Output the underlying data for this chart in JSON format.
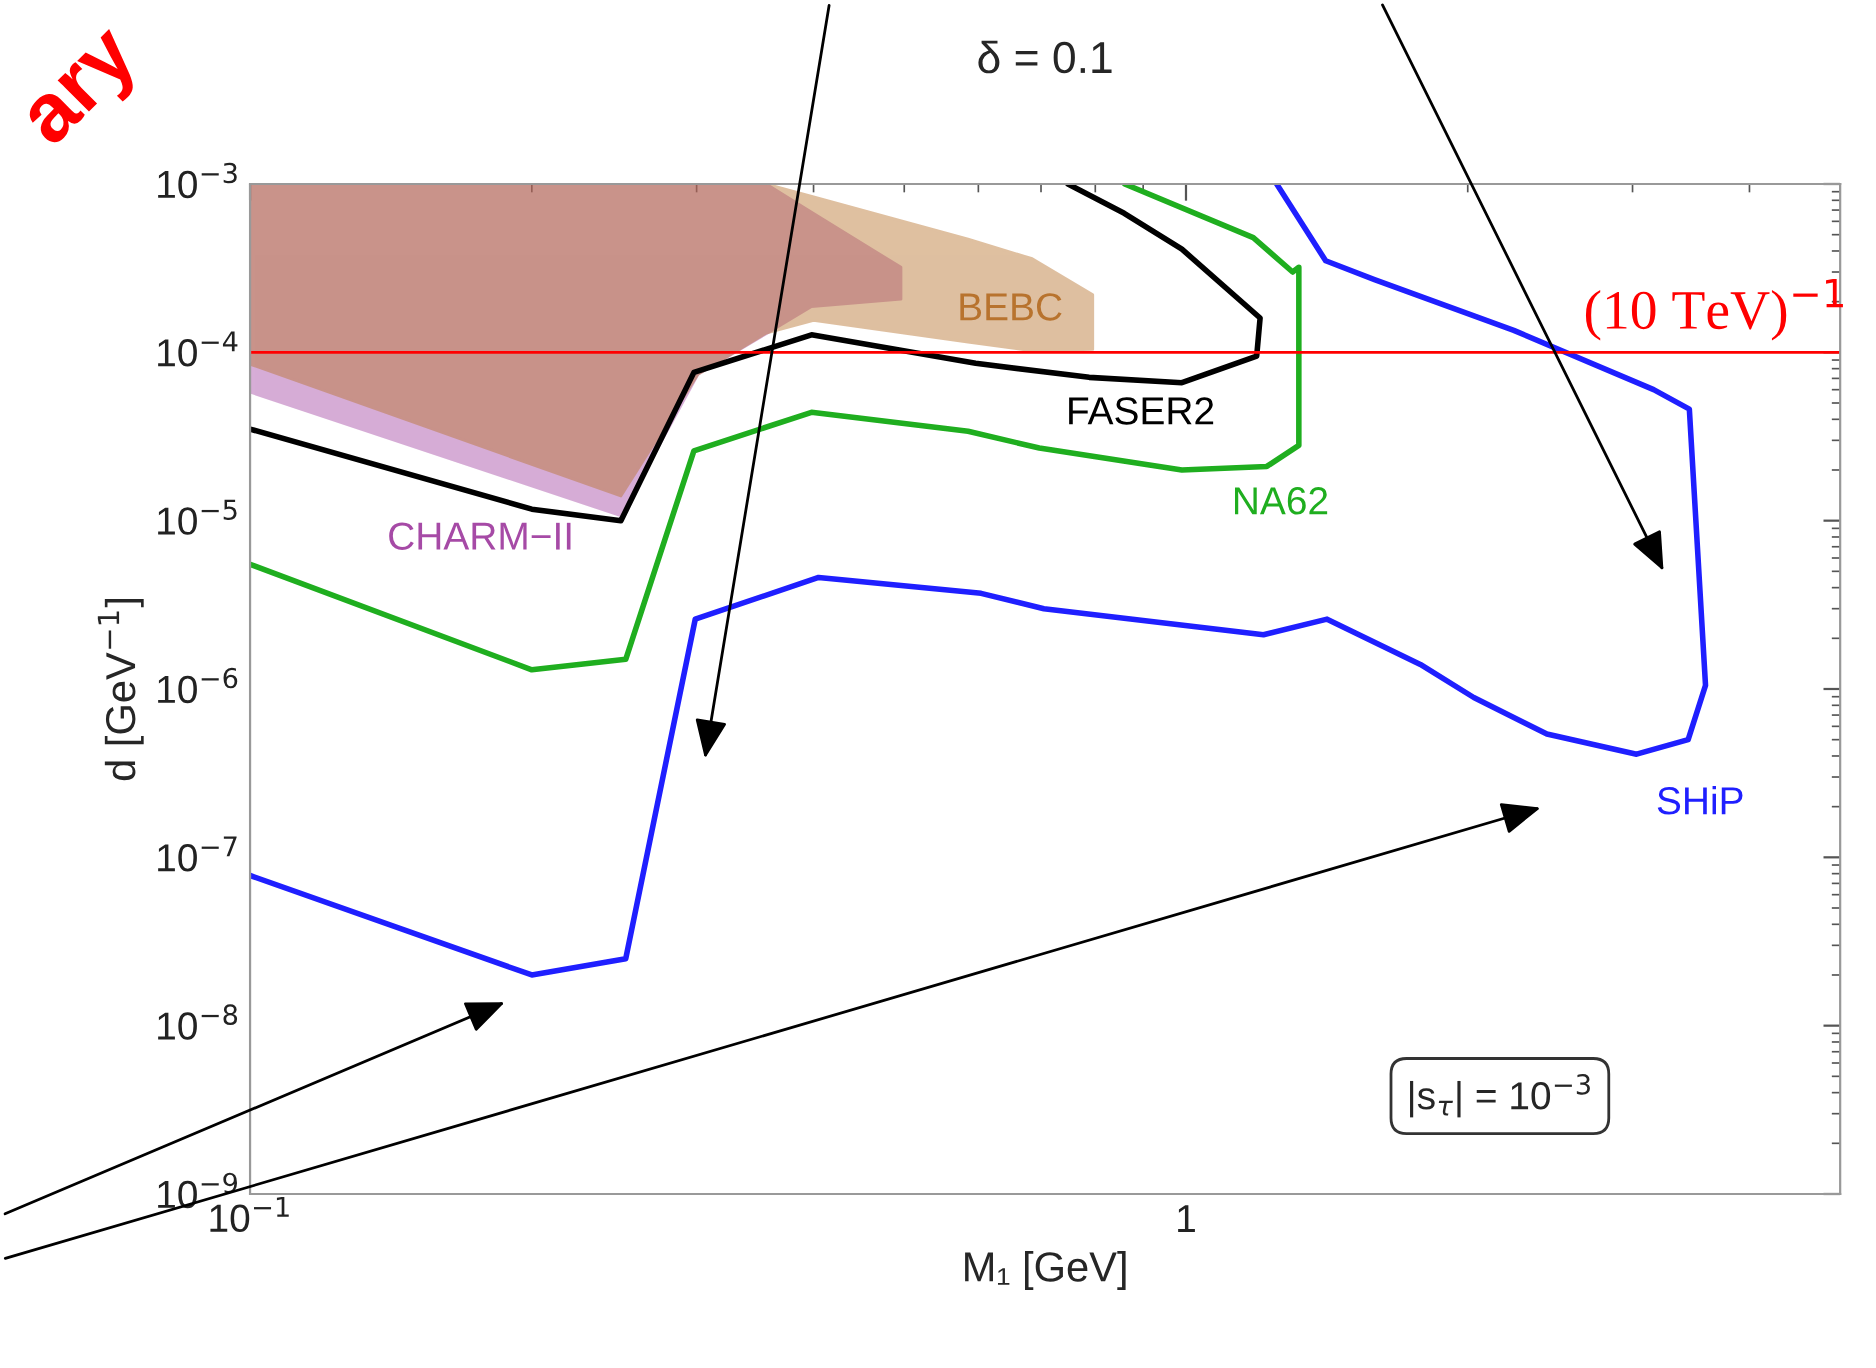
{
  "chart_data": {
    "type": "line",
    "title": "δ = 0.1",
    "xlabel": "M₁ [GeV]",
    "ylabel": "d [GeV$^{−1}$]",
    "log": "xy",
    "xlim": [
      0.1,
      5
    ],
    "ylim": [
      1e-09,
      0.001
    ],
    "xticks": [
      {
        "value": 0.1,
        "label": "10$^{−1}$"
      },
      1
    ],
    "yticks": [
      {
        "value": 1e-09,
        "label": "10$^{−9}$"
      },
      {
        "value": 1e-08,
        "label": "10$^{−8}$"
      },
      {
        "value": 1e-07,
        "label": "10$^{−7}$"
      },
      {
        "value": 1e-06,
        "label": "10$^{−6}$"
      },
      {
        "value": 1e-05,
        "label": "10$^{−5}$"
      },
      {
        "value": 0.0001,
        "label": "10$^{−4}$"
      },
      {
        "value": 0.001,
        "label": "10$^{−3}$"
      }
    ],
    "grid": false,
    "legend": false,
    "series": [
      {
        "name": "CHARM−II",
        "type": "area",
        "color": "#a64aa6",
        "x": [
          0.1,
          0.249,
          0.301,
          0.356,
          0.398,
          0.496,
          0.496,
          0.398,
          0.356,
          0.1
        ],
        "values": [
          5.8e-05,
          1.07e-05,
          7.4e-05,
          0.000129,
          0.000187,
          0.000207,
          0.00032,
          0.00068,
          0.001,
          0.001
        ]
      },
      {
        "name": "BEBC",
        "type": "area",
        "color": "#b8732e",
        "x": [
          0.1,
          0.249,
          0.301,
          0.356,
          0.4,
          0.585,
          0.685,
          0.795,
          0.795,
          0.685,
          0.585,
          0.4,
          0.356,
          0.1
        ],
        "values": [
          8.5e-05,
          1.4e-05,
          7.4e-05,
          0.00013,
          0.000155,
          0.000115,
          0.000102,
          0.000104,
          0.00022,
          0.00036,
          0.00047,
          0.00084,
          0.001,
          0.001
        ]
      },
      {
        "name": "FASER2",
        "color": "#000000",
        "x": [
          0.1,
          0.2,
          0.249,
          0.298,
          0.398,
          0.596,
          0.788,
          0.99,
          1.19,
          1.2,
          0.99,
          0.859,
          0.748
        ],
        "values": [
          3.5e-05,
          1.17e-05,
          1e-05,
          7.6e-05,
          0.000127,
          8.6e-05,
          7.1e-05,
          6.6e-05,
          9.5e-05,
          0.00016,
          0.00041,
          0.00067,
          0.001
        ]
      },
      {
        "name": "NA62",
        "color": "#1fae1f",
        "x": [
          0.1,
          0.2,
          0.252,
          0.298,
          0.398,
          0.585,
          0.697,
          0.99,
          1.22,
          1.32,
          1.32,
          1.3,
          1.18,
          0.86
        ],
        "values": [
          5.5e-06,
          1.3e-06,
          1.5e-06,
          2.6e-05,
          4.4e-05,
          3.4e-05,
          2.7e-05,
          2e-05,
          2.1e-05,
          2.8e-05,
          0.00032,
          0.0003,
          0.00048,
          0.001
        ]
      },
      {
        "name": "SHiP",
        "color": "#1f1fff",
        "x": [
          0.1,
          0.2,
          0.252,
          0.299,
          0.405,
          0.604,
          0.705,
          1.21,
          1.415,
          1.78,
          2.03,
          2.43,
          3.03,
          3.44,
          3.59,
          3.45,
          3.16,
          2.24,
          1.59,
          1.41,
          1.25
        ],
        "values": [
          7.8e-08,
          2e-08,
          2.5e-08,
          2.6e-06,
          4.6e-06,
          3.7e-06,
          3e-06,
          2.1e-06,
          2.6e-06,
          1.4e-06,
          8.9e-07,
          5.4e-07,
          4.1e-07,
          5e-07,
          1.05e-06,
          4.6e-05,
          6e-05,
          0.000135,
          0.00027,
          0.00035,
          0.001
        ]
      }
    ],
    "ref_lines": [
      {
        "axis": "y",
        "value": 0.0001,
        "label": "(10 TeV)$^{−1}$",
        "color": "#ff0000"
      }
    ],
    "annotations": [
      "|s$_{τ}$| = 10$^{−3}$",
      "ary"
    ]
  }
}
